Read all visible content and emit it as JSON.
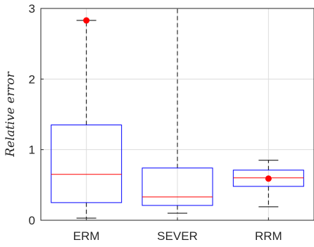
{
  "chart_data": {
    "type": "box",
    "title": "",
    "xlabel": "",
    "ylabel": "Relative error",
    "ylim": [
      0,
      3
    ],
    "yticks": [
      0,
      1,
      2,
      3
    ],
    "grid": true,
    "categories": [
      "ERM",
      "SEVER",
      "RRM"
    ],
    "boxes": [
      {
        "category": "ERM",
        "whisker_low": 0.03,
        "q1": 0.25,
        "median": 0.65,
        "q3": 1.35,
        "whisker_high": 2.83,
        "outliers": [
          2.83
        ]
      },
      {
        "category": "SEVER",
        "whisker_low": 0.1,
        "q1": 0.21,
        "median": 0.33,
        "q3": 0.74,
        "whisker_high": 3.0,
        "outliers": []
      },
      {
        "category": "RRM",
        "whisker_low": 0.19,
        "q1": 0.48,
        "median": 0.6,
        "q3": 0.71,
        "whisker_high": 0.85,
        "outliers": [
          0.59
        ]
      }
    ],
    "colors": {
      "box": "#0000ff",
      "median": "#ff0000",
      "whisker": "#000000",
      "outlier": "#ff0000",
      "grid": "#dcdcdc",
      "axis": "#262626"
    }
  }
}
